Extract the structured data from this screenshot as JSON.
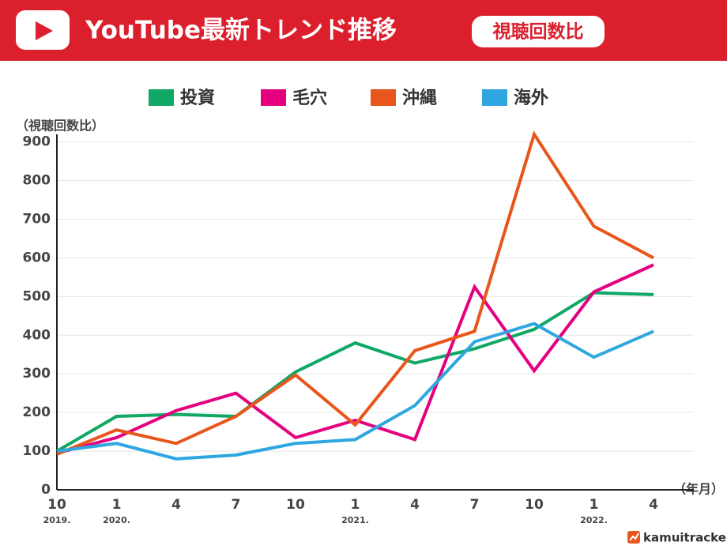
{
  "chart_data": {
    "type": "line",
    "title": "YouTube最新トレンド推移",
    "subtitle": "視聴回数比",
    "y_label": "（視聴回数比）",
    "x_label": "（年月）",
    "brand": "kamuitracker",
    "categories": [
      "10",
      "1",
      "4",
      "7",
      "10",
      "1",
      "4",
      "7",
      "10",
      "1",
      "4"
    ],
    "year_labels": [
      "2019.",
      "2020.",
      null,
      null,
      null,
      "2021.",
      null,
      null,
      null,
      "2022.",
      null
    ],
    "series": [
      {
        "name": "投資",
        "color": "#0fa865",
        "values": [
          100,
          190,
          195,
          190,
          305,
          380,
          328,
          365,
          415,
          510,
          505
        ]
      },
      {
        "name": "毛穴",
        "color": "#e4007f",
        "values": [
          95,
          135,
          205,
          250,
          135,
          180,
          130,
          525,
          308,
          512,
          582
        ]
      },
      {
        "name": "沖縄",
        "color": "#e8561b",
        "values": [
          92,
          155,
          120,
          190,
          297,
          168,
          360,
          410,
          920,
          682,
          600
        ]
      },
      {
        "name": "海外",
        "color": "#2ea7e0",
        "values": [
          100,
          120,
          80,
          90,
          120,
          130,
          218,
          383,
          430,
          343,
          410
        ]
      }
    ],
    "ylim": [
      0,
      930
    ],
    "yticks": [
      0,
      100,
      200,
      300,
      400,
      500,
      600,
      700,
      800,
      900
    ],
    "grid": true
  }
}
